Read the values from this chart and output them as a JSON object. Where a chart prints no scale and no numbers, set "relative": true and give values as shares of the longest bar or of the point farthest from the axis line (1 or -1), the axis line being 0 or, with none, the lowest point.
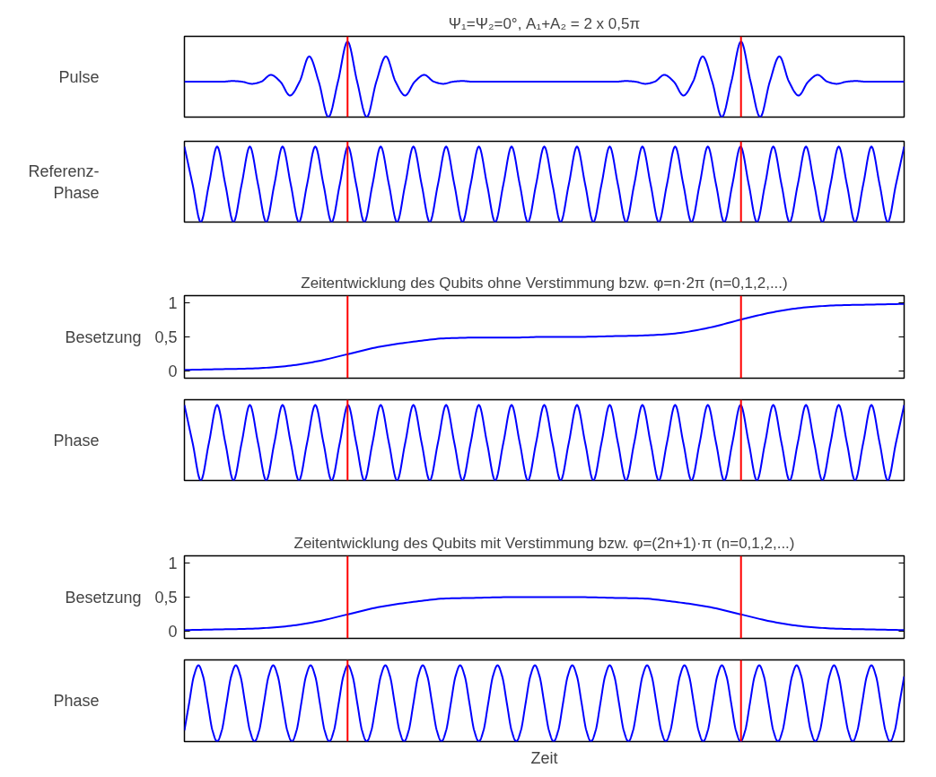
{
  "chart_data": [
    {
      "type": "line",
      "title": "Ψ₁=Ψ₂=0°, A₁+A₂ = 2 x 0,5π",
      "ylabel": "Pulse",
      "relative": true,
      "tick_labels": false,
      "categories": [
        null,
        null,
        null,
        null,
        null,
        null,
        null,
        null,
        null,
        null,
        null,
        null,
        null,
        null,
        null,
        null,
        null,
        null,
        null,
        null,
        null,
        null,
        null,
        null,
        null,
        null,
        null,
        null,
        null,
        null,
        null,
        null,
        null,
        null,
        null,
        null,
        null,
        null,
        null,
        null,
        null,
        null,
        null,
        null,
        null,
        null,
        null,
        null,
        null,
        null,
        null,
        null,
        null,
        null,
        null,
        null,
        null,
        null,
        null,
        null,
        null,
        null,
        null,
        null,
        null,
        null,
        null,
        null,
        null,
        null,
        null,
        null,
        null,
        null,
        null,
        null
      ],
      "series": [
        {
          "color": "#0000ff",
          "values": [
            0.469,
            0.469,
            0.469,
            0.469,
            0.469,
            0.478,
            0.469,
            0.441,
            0.469,
            0.559,
            0.469,
            0.286,
            0.469,
            0.804,
            0.469,
            0,
            0.469,
            1,
            0.469,
            0,
            0.469,
            0.804,
            0.469,
            0.286,
            0.469,
            0.559,
            0.469,
            0.441,
            0.469,
            0.478,
            0.469,
            0.469,
            0.469,
            0.469,
            0.469,
            0.469,
            0.469,
            0.469,
            0.469,
            0.469,
            0.469,
            0.469,
            0.469,
            0.469,
            0.469,
            0.469,
            0.478,
            0.469,
            0.441,
            0.469,
            0.559,
            0.469,
            0.286,
            0.469,
            0.804,
            0.469,
            0,
            0.469,
            1,
            0.469,
            0,
            0.469,
            0.804,
            0.469,
            0.286,
            0.469,
            0.559,
            0.469,
            0.441,
            0.469,
            0.478,
            0.469,
            0.469,
            0.469,
            0.469,
            0.469
          ]
        }
      ]
    },
    {
      "type": "line",
      "ylabel": "Referenz-\nPhase",
      "relative": true,
      "tick_labels": false,
      "categories": [
        null,
        null,
        null,
        null,
        null,
        null,
        null,
        null,
        null,
        null,
        null,
        null,
        null,
        null,
        null,
        null,
        null,
        null,
        null,
        null,
        null,
        null,
        null,
        null,
        null,
        null,
        null,
        null,
        null,
        null,
        null,
        null,
        null,
        null,
        null,
        null,
        null,
        null,
        null,
        null,
        null,
        null,
        null,
        null,
        null,
        null,
        null,
        null,
        null,
        null,
        null,
        null,
        null,
        null,
        null,
        null,
        null,
        null,
        null,
        null,
        null,
        null,
        null,
        null,
        null,
        null,
        null,
        null,
        null,
        null,
        null,
        null,
        null,
        null,
        null,
        null,
        null,
        null,
        null,
        null,
        null,
        null,
        null,
        null,
        null,
        null,
        null,
        null,
        null
      ],
      "series": [
        {
          "color": "#0000ff",
          "values": [
            1,
            0.5,
            0,
            0.5,
            1,
            0.5,
            0,
            0.5,
            1,
            0.5,
            0,
            0.5,
            1,
            0.5,
            0,
            0.5,
            1,
            0.5,
            0,
            0.5,
            1,
            0.5,
            0,
            0.5,
            1,
            0.5,
            0,
            0.5,
            1,
            0.5,
            0,
            0.5,
            1,
            0.5,
            0,
            0.5,
            1,
            0.5,
            0,
            0.5,
            1,
            0.5,
            0,
            0.5,
            1,
            0.5,
            0,
            0.5,
            1,
            0.5,
            0,
            0.5,
            1,
            0.5,
            0,
            0.5,
            1,
            0.5,
            0,
            0.5,
            1,
            0.5,
            0,
            0.5,
            1,
            0.5,
            0,
            0.5,
            1,
            0.5,
            0,
            0.5,
            1,
            0.5,
            0,
            0.5,
            1,
            0.5,
            0,
            0.5,
            1,
            0.5,
            0,
            0.5,
            1,
            0.5,
            0,
            0.5,
            1
          ]
        }
      ]
    },
    {
      "type": "line",
      "title": "Zeitentwicklung des Qubits ohne Verstimmung bzw. φ=n·2π (n=0,1,2,...)",
      "ylabel": "Besetzung",
      "tick_labels": "y",
      "categories": [
        null,
        null,
        null,
        null,
        null,
        null,
        null,
        null,
        null,
        null,
        null,
        null,
        null,
        null,
        null,
        null,
        null,
        null,
        null,
        null,
        null,
        null,
        null
      ],
      "ylim": [
        -0.1,
        1.1
      ],
      "yticks": [
        0,
        {
          "value": 0.5,
          "label": "0,5"
        },
        1
      ],
      "series": [
        {
          "color": "#0000ff",
          "values": [
            0.02,
            0.03,
            0.04,
            0.07,
            0.14,
            0.25,
            0.36,
            0.43,
            0.48,
            0.49,
            0.49,
            0.5,
            0.5,
            0.51,
            0.52,
            0.55,
            0.63,
            0.75,
            0.86,
            0.93,
            0.96,
            0.97,
            0.98
          ]
        }
      ]
    },
    {
      "type": "line",
      "ylabel": "Phase",
      "relative": true,
      "tick_labels": false,
      "categories": [
        null,
        null,
        null,
        null,
        null,
        null,
        null,
        null,
        null,
        null,
        null,
        null,
        null,
        null,
        null,
        null,
        null,
        null,
        null,
        null,
        null,
        null,
        null,
        null,
        null,
        null,
        null,
        null,
        null,
        null,
        null,
        null,
        null,
        null,
        null,
        null,
        null,
        null,
        null,
        null,
        null,
        null,
        null,
        null,
        null,
        null,
        null,
        null,
        null,
        null,
        null,
        null,
        null,
        null,
        null,
        null,
        null,
        null,
        null,
        null,
        null,
        null,
        null,
        null,
        null,
        null,
        null,
        null,
        null,
        null,
        null,
        null,
        null,
        null,
        null,
        null,
        null,
        null,
        null,
        null,
        null,
        null,
        null,
        null,
        null,
        null,
        null,
        null,
        null
      ],
      "series": [
        {
          "color": "#0000ff",
          "values": [
            1,
            0.5,
            0,
            0.5,
            1,
            0.5,
            0,
            0.5,
            1,
            0.5,
            0,
            0.5,
            1,
            0.5,
            0,
            0.5,
            1,
            0.5,
            0,
            0.5,
            1,
            0.5,
            0,
            0.5,
            1,
            0.5,
            0,
            0.5,
            1,
            0.5,
            0,
            0.5,
            1,
            0.5,
            0,
            0.5,
            1,
            0.5,
            0,
            0.5,
            1,
            0.5,
            0,
            0.5,
            1,
            0.5,
            0,
            0.5,
            1,
            0.5,
            0,
            0.5,
            1,
            0.5,
            0,
            0.5,
            1,
            0.5,
            0,
            0.5,
            1,
            0.5,
            0,
            0.5,
            1,
            0.5,
            0,
            0.5,
            1,
            0.5,
            0,
            0.5,
            1,
            0.5,
            0,
            0.5,
            1,
            0.5,
            0,
            0.5,
            1,
            0.5,
            0,
            0.5,
            1,
            0.5,
            0,
            0.5,
            1
          ]
        }
      ]
    },
    {
      "type": "line",
      "title": "Zeitentwicklung des Qubits mit Verstimmung bzw. φ=(2n+1)·π (n=0,1,2,...)",
      "ylabel": "Besetzung",
      "tick_labels": "y",
      "categories": [
        null,
        null,
        null,
        null,
        null,
        null,
        null,
        null,
        null,
        null,
        null,
        null,
        null,
        null,
        null,
        null,
        null,
        null,
        null,
        null,
        null,
        null,
        null
      ],
      "ylim": [
        -0.1,
        1.1
      ],
      "yticks": [
        0,
        {
          "value": 0.5,
          "label": "0,5"
        },
        1
      ],
      "series": [
        {
          "color": "#0000ff",
          "values": [
            0.02,
            0.03,
            0.04,
            0.07,
            0.14,
            0.25,
            0.36,
            0.43,
            0.48,
            0.49,
            0.5,
            0.5,
            0.5,
            0.49,
            0.48,
            0.43,
            0.36,
            0.25,
            0.14,
            0.07,
            0.04,
            0.03,
            0.02
          ]
        }
      ]
    },
    {
      "type": "line",
      "ylabel": "Phase",
      "xlabel": "Zeit",
      "relative": true,
      "tick_labels": false,
      "categories": [
        null,
        null,
        null,
        null,
        null,
        null,
        null,
        null,
        null,
        null,
        null,
        null,
        null,
        null,
        null,
        null,
        null,
        null,
        null,
        null,
        null,
        null,
        null,
        null,
        null,
        null,
        null,
        null,
        null,
        null,
        null,
        null,
        null,
        null,
        null,
        null,
        null,
        null,
        null,
        null,
        null,
        null,
        null,
        null,
        null,
        null,
        null,
        null,
        null,
        null,
        null,
        null,
        null,
        null,
        null,
        null,
        null,
        null,
        null,
        null,
        null,
        null,
        null,
        null,
        null,
        null,
        null,
        null,
        null,
        null,
        null,
        null,
        null,
        null,
        null,
        null,
        null,
        null,
        null,
        null,
        null,
        null,
        null,
        null,
        null,
        null,
        null,
        null,
        null,
        null,
        null,
        null,
        null,
        null,
        null,
        null,
        null,
        null,
        null,
        null,
        null,
        null,
        null,
        null,
        null,
        null,
        null,
        null,
        null,
        null,
        null,
        null,
        null,
        null,
        null,
        null,
        null,
        null,
        null,
        null,
        null,
        null,
        null,
        null,
        null,
        null,
        null,
        null,
        null,
        null,
        null,
        null,
        null,
        null,
        null,
        null,
        null,
        null,
        null,
        null,
        null,
        null,
        null,
        null,
        null,
        null,
        null,
        null,
        null,
        null,
        null,
        null,
        null,
        null,
        null
      ],
      "series": [
        {
          "color": "#0000ff",
          "values": [
            0.146,
            0.5,
            0.854,
            1,
            0.854,
            0.5,
            0.146,
            0,
            0.146,
            0.5,
            0.854,
            1,
            0.854,
            0.5,
            0.146,
            0,
            0.146,
            0.5,
            0.854,
            1,
            0.854,
            0.5,
            0.146,
            0,
            0.146,
            0.5,
            0.854,
            1,
            0.854,
            0.5,
            0.146,
            0,
            0.146,
            0.5,
            0.854,
            1,
            0.854,
            0.5,
            0.146,
            0,
            0.146,
            0.5,
            0.854,
            1,
            0.854,
            0.5,
            0.146,
            0,
            0.146,
            0.5,
            0.854,
            1,
            0.854,
            0.5,
            0.146,
            0,
            0.146,
            0.5,
            0.854,
            1,
            0.854,
            0.5,
            0.146,
            0,
            0.146,
            0.5,
            0.854,
            1,
            0.854,
            0.5,
            0.146,
            0,
            0.146,
            0.5,
            0.854,
            1,
            0.854,
            0.5,
            0.146,
            0,
            0.146,
            0.5,
            0.854,
            1,
            0.854,
            0.5,
            0.146,
            0,
            0.146,
            0.5,
            0.854,
            1,
            0.854,
            0.5,
            0.146,
            0,
            0.146,
            0.5,
            0.854,
            1,
            0.854,
            0.5,
            0.146,
            0,
            0.146,
            0.5,
            0.854,
            1,
            0.854,
            0.5,
            0.146,
            0,
            0.146,
            0.5,
            0.854,
            1,
            0.854,
            0.5,
            0.146,
            0,
            0.146,
            0.5,
            0.854,
            1,
            0.854,
            0.5,
            0.146,
            0,
            0.146,
            0.5,
            0.854,
            1,
            0.854,
            0.5,
            0.146,
            0,
            0.146,
            0.5,
            0.854,
            1,
            0.854,
            0.5,
            0.146,
            0,
            0.146,
            0.5,
            0.854,
            1,
            0.854,
            0.5,
            0.146,
            0,
            0.146,
            0.5,
            0.854
          ]
        }
      ]
    }
  ]
}
